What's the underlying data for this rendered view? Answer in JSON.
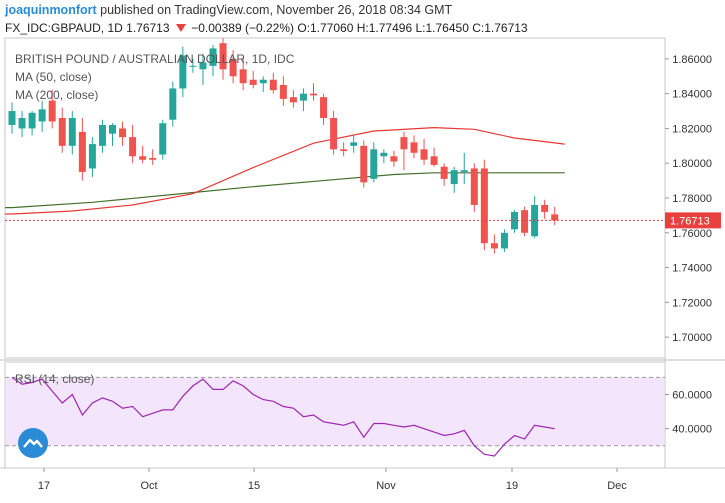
{
  "header": {
    "author": "joaquinmonfort",
    "published_text": "published on TradingView.com, November 26, 2018 08:34 GMT",
    "symbol": "FX_IDC:GBPAUD, 1D",
    "last": "1.76713",
    "change": "−0.00389 (−0.22%)",
    "o_label": "O:",
    "o_value": "1.77060",
    "h_label": "H:",
    "h_value": "1.77496",
    "l_label": "L:",
    "l_value": "1.76450",
    "c_label": "C:",
    "c_value": "1.76713"
  },
  "legend": {
    "title": "BRITISH POUND / AUSTRALIAN DOLLAR, 1D, IDC",
    "ma50": "MA (50, close)",
    "ma200": "MA (200, close)",
    "rsi": "RSI (14, close)"
  },
  "colors": {
    "up": "#26a69a",
    "down": "#ef5350",
    "ma50": "#e53935",
    "ma200": "#43702a",
    "rsi_line": "#9c27b0",
    "rsi_band": "#f3e5fb",
    "price_tag": "#e8403f",
    "logo": "#2a8bd6"
  },
  "chart_data": [
    {
      "type": "candlestick",
      "title": "BRITISH POUND / AUSTRALIAN DOLLAR, 1D, IDC",
      "x_tick_labels": [
        "17",
        "Oct",
        "15",
        "Nov",
        "19",
        "Dec"
      ],
      "y_tick_labels": [
        "1.86000",
        "1.84000",
        "1.82000",
        "1.80000",
        "1.78000",
        "1.76000",
        "1.74000",
        "1.72000",
        "1.70000"
      ],
      "ylim": [
        1.688,
        1.872
      ],
      "last_price_label": "1.76713",
      "candles": [
        {
          "o": 1.822,
          "h": 1.835,
          "l": 1.817,
          "c": 1.83
        },
        {
          "o": 1.82,
          "h": 1.83,
          "l": 1.815,
          "c": 1.826
        },
        {
          "o": 1.82,
          "h": 1.83,
          "l": 1.816,
          "c": 1.829
        },
        {
          "o": 1.824,
          "h": 1.836,
          "l": 1.818,
          "c": 1.831
        },
        {
          "o": 1.836,
          "h": 1.842,
          "l": 1.82,
          "c": 1.824
        },
        {
          "o": 1.826,
          "h": 1.832,
          "l": 1.806,
          "c": 1.81
        },
        {
          "o": 1.81,
          "h": 1.83,
          "l": 1.805,
          "c": 1.826
        },
        {
          "o": 1.818,
          "h": 1.826,
          "l": 1.79,
          "c": 1.795
        },
        {
          "o": 1.797,
          "h": 1.815,
          "l": 1.792,
          "c": 1.811
        },
        {
          "o": 1.81,
          "h": 1.825,
          "l": 1.806,
          "c": 1.822
        },
        {
          "o": 1.817,
          "h": 1.823,
          "l": 1.81,
          "c": 1.822
        },
        {
          "o": 1.82,
          "h": 1.824,
          "l": 1.81,
          "c": 1.815
        },
        {
          "o": 1.815,
          "h": 1.822,
          "l": 1.8,
          "c": 1.804
        },
        {
          "o": 1.804,
          "h": 1.81,
          "l": 1.8,
          "c": 1.802
        },
        {
          "o": 1.803,
          "h": 1.808,
          "l": 1.799,
          "c": 1.802
        },
        {
          "o": 1.805,
          "h": 1.825,
          "l": 1.802,
          "c": 1.823
        },
        {
          "o": 1.825,
          "h": 1.847,
          "l": 1.821,
          "c": 1.843
        },
        {
          "o": 1.843,
          "h": 1.867,
          "l": 1.838,
          "c": 1.862
        },
        {
          "o": 1.856,
          "h": 1.86,
          "l": 1.852,
          "c": 1.856
        },
        {
          "o": 1.854,
          "h": 1.863,
          "l": 1.845,
          "c": 1.858
        },
        {
          "o": 1.856,
          "h": 1.868,
          "l": 1.85,
          "c": 1.866
        },
        {
          "o": 1.869,
          "h": 1.872,
          "l": 1.848,
          "c": 1.854
        },
        {
          "o": 1.86,
          "h": 1.865,
          "l": 1.846,
          "c": 1.85
        },
        {
          "o": 1.854,
          "h": 1.861,
          "l": 1.842,
          "c": 1.846
        },
        {
          "o": 1.848,
          "h": 1.853,
          "l": 1.843,
          "c": 1.845
        },
        {
          "o": 1.846,
          "h": 1.85,
          "l": 1.841,
          "c": 1.848
        },
        {
          "o": 1.848,
          "h": 1.852,
          "l": 1.84,
          "c": 1.842
        },
        {
          "o": 1.845,
          "h": 1.85,
          "l": 1.833,
          "c": 1.837
        },
        {
          "o": 1.838,
          "h": 1.842,
          "l": 1.832,
          "c": 1.835
        },
        {
          "o": 1.836,
          "h": 1.843,
          "l": 1.83,
          "c": 1.84
        },
        {
          "o": 1.84,
          "h": 1.846,
          "l": 1.836,
          "c": 1.839
        },
        {
          "o": 1.838,
          "h": 1.84,
          "l": 1.822,
          "c": 1.826
        },
        {
          "o": 1.826,
          "h": 1.83,
          "l": 1.805,
          "c": 1.808
        },
        {
          "o": 1.808,
          "h": 1.812,
          "l": 1.804,
          "c": 1.807
        },
        {
          "o": 1.81,
          "h": 1.816,
          "l": 1.806,
          "c": 1.812
        },
        {
          "o": 1.81,
          "h": 1.813,
          "l": 1.786,
          "c": 1.789
        },
        {
          "o": 1.791,
          "h": 1.812,
          "l": 1.789,
          "c": 1.808
        },
        {
          "o": 1.804,
          "h": 1.808,
          "l": 1.8,
          "c": 1.806
        },
        {
          "o": 1.804,
          "h": 1.807,
          "l": 1.798,
          "c": 1.801
        },
        {
          "o": 1.815,
          "h": 1.818,
          "l": 1.796,
          "c": 1.808
        },
        {
          "o": 1.812,
          "h": 1.816,
          "l": 1.803,
          "c": 1.806
        },
        {
          "o": 1.808,
          "h": 1.814,
          "l": 1.799,
          "c": 1.802
        },
        {
          "o": 1.804,
          "h": 1.809,
          "l": 1.798,
          "c": 1.799
        },
        {
          "o": 1.798,
          "h": 1.8,
          "l": 1.787,
          "c": 1.791
        },
        {
          "o": 1.788,
          "h": 1.798,
          "l": 1.783,
          "c": 1.796
        },
        {
          "o": 1.795,
          "h": 1.806,
          "l": 1.788,
          "c": 1.796
        },
        {
          "o": 1.797,
          "h": 1.8,
          "l": 1.772,
          "c": 1.776
        },
        {
          "o": 1.797,
          "h": 1.802,
          "l": 1.75,
          "c": 1.754
        },
        {
          "o": 1.754,
          "h": 1.759,
          "l": 1.748,
          "c": 1.751
        },
        {
          "o": 1.751,
          "h": 1.762,
          "l": 1.749,
          "c": 1.76
        },
        {
          "o": 1.762,
          "h": 1.773,
          "l": 1.76,
          "c": 1.772
        },
        {
          "o": 1.773,
          "h": 1.775,
          "l": 1.758,
          "c": 1.76
        },
        {
          "o": 1.758,
          "h": 1.781,
          "l": 1.757,
          "c": 1.776
        },
        {
          "o": 1.776,
          "h": 1.779,
          "l": 1.768,
          "c": 1.772
        },
        {
          "o": 1.7706,
          "h": 1.77496,
          "l": 1.7645,
          "c": 1.76713
        }
      ],
      "ma50": [
        [
          0,
          1.7708
        ],
        [
          6,
          1.7725
        ],
        [
          12,
          1.776
        ],
        [
          18,
          1.7825
        ],
        [
          24,
          1.7975
        ],
        [
          30,
          1.8115
        ],
        [
          36,
          1.8185
        ],
        [
          42,
          1.8205
        ],
        [
          46,
          1.8195
        ],
        [
          50,
          1.8145
        ],
        [
          55,
          1.811
        ]
      ],
      "ma200": [
        [
          0,
          1.7745
        ],
        [
          8,
          1.7775
        ],
        [
          16,
          1.782
        ],
        [
          24,
          1.7865
        ],
        [
          32,
          1.7905
        ],
        [
          38,
          1.7935
        ],
        [
          42,
          1.7945
        ],
        [
          48,
          1.7945
        ],
        [
          55,
          1.7945
        ]
      ]
    },
    {
      "type": "line",
      "title": "RSI (14, close)",
      "y_tick_labels": [
        "60.0000",
        "40.0000"
      ],
      "ylim": [
        17,
        79
      ],
      "bands": [
        70,
        30
      ],
      "values": [
        70,
        66,
        67,
        69,
        62,
        55,
        60,
        48,
        55,
        58,
        56,
        52,
        53,
        47,
        49,
        51,
        51,
        59,
        65,
        69,
        63,
        63,
        68,
        65,
        60,
        57,
        56,
        53,
        52,
        47,
        48,
        44,
        43,
        42,
        44,
        35,
        43,
        43,
        42,
        41,
        42,
        40,
        38,
        36,
        37,
        39,
        30,
        25,
        24,
        31,
        36,
        34,
        42,
        41,
        40
      ]
    }
  ]
}
